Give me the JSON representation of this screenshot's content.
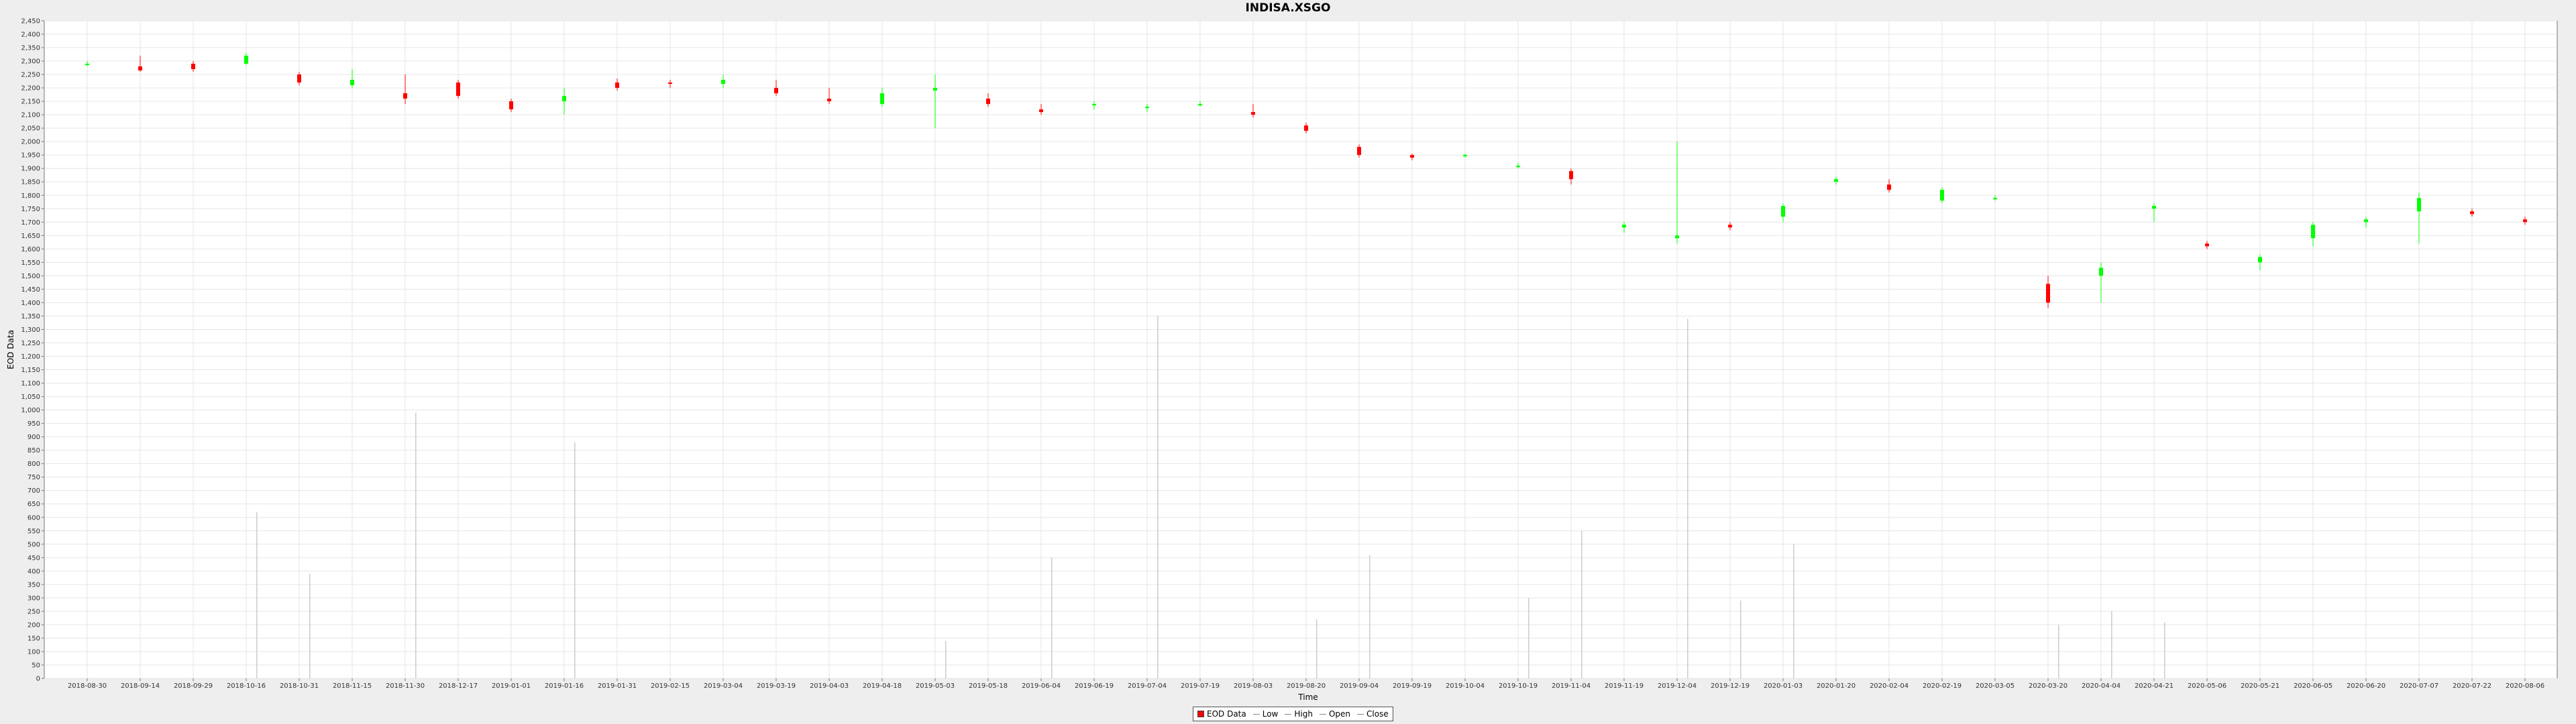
{
  "chart_data": {
    "type": "candlestick",
    "title": "INDISA.XSGO",
    "xlabel": "Time",
    "ylabel": "EOD Data",
    "ylim": [
      0,
      2450
    ],
    "y_tick_step": 50,
    "grid": true,
    "legend_position": "bottom-center",
    "x_tick_labels": [
      "2018-08-30",
      "2018-09-14",
      "2018-09-29",
      "2018-10-16",
      "2018-10-31",
      "2018-11-15",
      "2018-11-30",
      "2018-12-17",
      "2019-01-01",
      "2019-01-16",
      "2019-01-31",
      "2019-02-15",
      "2019-03-04",
      "2019-03-19",
      "2019-04-03",
      "2019-04-18",
      "2019-05-03",
      "2019-05-18",
      "2019-06-04",
      "2019-06-19",
      "2019-07-04",
      "2019-07-19",
      "2019-08-03",
      "2019-08-20",
      "2019-09-04",
      "2019-09-19",
      "2019-10-04",
      "2019-10-19",
      "2019-11-04",
      "2019-11-19",
      "2019-12-04",
      "2019-12-19",
      "2020-01-03",
      "2020-01-20",
      "2020-02-04",
      "2020-02-19",
      "2020-03-05",
      "2020-03-20",
      "2020-04-04",
      "2020-04-21",
      "2020-05-06",
      "2020-05-21",
      "2020-06-05",
      "2020-06-20",
      "2020-07-07",
      "2020-07-22",
      "2020-08-06"
    ],
    "series_names": [
      "EOD Data",
      "Low",
      "High",
      "Open",
      "Close"
    ],
    "ohlc_trend": [
      {
        "date": "2018-08-30",
        "open": 2285,
        "high": 2300,
        "low": 2280,
        "close": 2290
      },
      {
        "date": "2018-09-14",
        "open": 2280,
        "high": 2320,
        "low": 2260,
        "close": 2265
      },
      {
        "date": "2018-09-29",
        "open": 2290,
        "high": 2300,
        "low": 2260,
        "close": 2270
      },
      {
        "date": "2018-10-16",
        "open": 2290,
        "high": 2330,
        "low": 2285,
        "close": 2320
      },
      {
        "date": "2018-10-31",
        "open": 2250,
        "high": 2260,
        "low": 2210,
        "close": 2220
      },
      {
        "date": "2018-11-15",
        "open": 2210,
        "high": 2270,
        "low": 2200,
        "close": 2230
      },
      {
        "date": "2018-11-30",
        "open": 2180,
        "high": 2250,
        "low": 2140,
        "close": 2160
      },
      {
        "date": "2018-12-17",
        "open": 2220,
        "high": 2230,
        "low": 2160,
        "close": 2170
      },
      {
        "date": "2019-01-01",
        "open": 2150,
        "high": 2160,
        "low": 2110,
        "close": 2120
      },
      {
        "date": "2019-01-16",
        "open": 2150,
        "high": 2200,
        "low": 2100,
        "close": 2170
      },
      {
        "date": "2019-01-31",
        "open": 2220,
        "high": 2235,
        "low": 2190,
        "close": 2200
      },
      {
        "date": "2019-02-15",
        "open": 2220,
        "high": 2230,
        "low": 2200,
        "close": 2215
      },
      {
        "date": "2019-03-04",
        "open": 2215,
        "high": 2250,
        "low": 2200,
        "close": 2230
      },
      {
        "date": "2019-03-19",
        "open": 2200,
        "high": 2230,
        "low": 2170,
        "close": 2180
      },
      {
        "date": "2019-04-03",
        "open": 2160,
        "high": 2200,
        "low": 2140,
        "close": 2150
      },
      {
        "date": "2019-04-18",
        "open": 2140,
        "high": 2200,
        "low": 2130,
        "close": 2180
      },
      {
        "date": "2019-05-03",
        "open": 2190,
        "high": 2250,
        "low": 2050,
        "close": 2200
      },
      {
        "date": "2019-05-18",
        "open": 2160,
        "high": 2180,
        "low": 2130,
        "close": 2140
      },
      {
        "date": "2019-06-04",
        "open": 2120,
        "high": 2140,
        "low": 2100,
        "close": 2110
      },
      {
        "date": "2019-06-19",
        "open": 2140,
        "high": 2150,
        "low": 2120,
        "close": 2140
      },
      {
        "date": "2019-07-04",
        "open": 2130,
        "high": 2140,
        "low": 2110,
        "close": 2130
      },
      {
        "date": "2019-07-19",
        "open": 2140,
        "high": 2150,
        "low": 2130,
        "close": 2140
      },
      {
        "date": "2019-08-03",
        "open": 2110,
        "high": 2140,
        "low": 2090,
        "close": 2100
      },
      {
        "date": "2019-08-20",
        "open": 2060,
        "high": 2070,
        "low": 2030,
        "close": 2040
      },
      {
        "date": "2019-09-04",
        "open": 1980,
        "high": 1990,
        "low": 1940,
        "close": 1950
      },
      {
        "date": "2019-09-19",
        "open": 1950,
        "high": 1955,
        "low": 1930,
        "close": 1940
      },
      {
        "date": "2019-10-04",
        "open": 1950,
        "high": 1955,
        "low": 1940,
        "close": 1950
      },
      {
        "date": "2019-10-19",
        "open": 1910,
        "high": 1920,
        "low": 1900,
        "close": 1910
      },
      {
        "date": "2019-11-04",
        "open": 1890,
        "high": 1900,
        "low": 1840,
        "close": 1860
      },
      {
        "date": "2019-11-19",
        "open": 1680,
        "high": 1700,
        "low": 1660,
        "close": 1690
      },
      {
        "date": "2019-12-04",
        "open": 1640,
        "high": 2000,
        "low": 1620,
        "close": 1650
      },
      {
        "date": "2019-12-19",
        "open": 1690,
        "high": 1700,
        "low": 1670,
        "close": 1680
      },
      {
        "date": "2020-01-03",
        "open": 1720,
        "high": 1770,
        "low": 1700,
        "close": 1760
      },
      {
        "date": "2020-01-20",
        "open": 1850,
        "high": 1870,
        "low": 1840,
        "close": 1860
      },
      {
        "date": "2020-02-04",
        "open": 1840,
        "high": 1860,
        "low": 1810,
        "close": 1820
      },
      {
        "date": "2020-02-19",
        "open": 1780,
        "high": 1830,
        "low": 1770,
        "close": 1820
      },
      {
        "date": "2020-03-05",
        "open": 1790,
        "high": 1800,
        "low": 1780,
        "close": 1790
      },
      {
        "date": "2020-03-20",
        "open": 1470,
        "high": 1500,
        "low": 1380,
        "close": 1400
      },
      {
        "date": "2020-04-04",
        "open": 1500,
        "high": 1550,
        "low": 1400,
        "close": 1530
      },
      {
        "date": "2020-04-21",
        "open": 1750,
        "high": 1770,
        "low": 1700,
        "close": 1760
      },
      {
        "date": "2020-05-06",
        "open": 1620,
        "high": 1630,
        "low": 1600,
        "close": 1610
      },
      {
        "date": "2020-05-21",
        "open": 1550,
        "high": 1580,
        "low": 1520,
        "close": 1570
      },
      {
        "date": "2020-06-05",
        "open": 1640,
        "high": 1700,
        "low": 1610,
        "close": 1690
      },
      {
        "date": "2020-06-20",
        "open": 1700,
        "high": 1720,
        "low": 1680,
        "close": 1710
      },
      {
        "date": "2020-07-07",
        "open": 1740,
        "high": 1810,
        "low": 1620,
        "close": 1790
      },
      {
        "date": "2020-07-22",
        "open": 1740,
        "high": 1750,
        "low": 1720,
        "close": 1730
      },
      {
        "date": "2020-08-06",
        "open": 1710,
        "high": 1720,
        "low": 1690,
        "close": 1700
      }
    ],
    "volume_spikes": [
      {
        "date": "2018-10-16",
        "value": 620
      },
      {
        "date": "2018-10-31",
        "value": 390
      },
      {
        "date": "2018-11-30",
        "value": 990
      },
      {
        "date": "2019-01-16",
        "value": 880
      },
      {
        "date": "2019-05-03",
        "value": 140
      },
      {
        "date": "2019-06-04",
        "value": 450
      },
      {
        "date": "2019-07-04",
        "value": 1350
      },
      {
        "date": "2019-08-20",
        "value": 220
      },
      {
        "date": "2019-09-04",
        "value": 460
      },
      {
        "date": "2019-10-19",
        "value": 300
      },
      {
        "date": "2019-11-04",
        "value": 550
      },
      {
        "date": "2019-12-04",
        "value": 1340
      },
      {
        "date": "2019-12-19",
        "value": 290
      },
      {
        "date": "2020-01-03",
        "value": 500
      },
      {
        "date": "2020-03-20",
        "value": 200
      },
      {
        "date": "2020-04-04",
        "value": 250
      },
      {
        "date": "2020-04-21",
        "value": 210
      }
    ]
  },
  "colors": {
    "plot_background": "#ffffff",
    "page_background": "#eeeeee",
    "grid": "#e6e6e6",
    "up_candle": "#00ff00",
    "down_candle": "#ff0000",
    "volume_line": "#cccccc",
    "axis": "#777777"
  },
  "legend": {
    "eod": "EOD Data",
    "low": "Low",
    "high": "High",
    "open": "Open",
    "close": "Close"
  }
}
